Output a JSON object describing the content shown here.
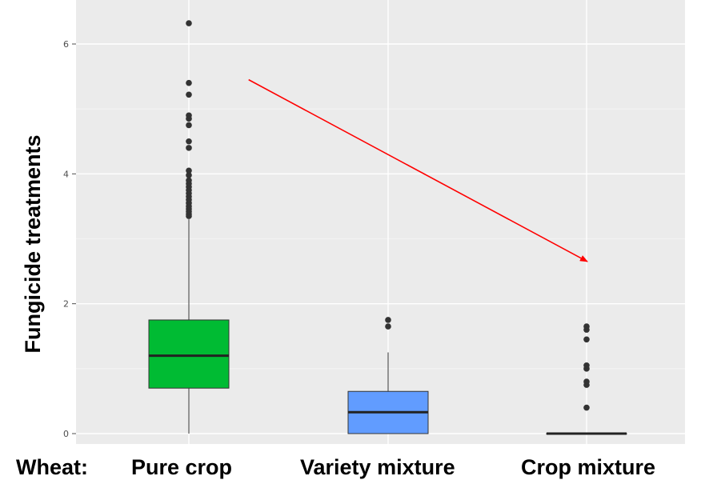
{
  "chart_data": {
    "type": "box",
    "ylabel": "Fungicide treatments",
    "xlabel_prefix": "Wheat:",
    "categories": [
      "Pure crop",
      "Variety mixture",
      "Crop mixture"
    ],
    "ylim": [
      -0.25,
      6.6
    ],
    "yticks": [
      0,
      2,
      4,
      6
    ],
    "grid": true,
    "boxes": [
      {
        "category": "Pure crop",
        "color": "#00bb33",
        "whisker_low": 0,
        "q1": 0.7,
        "median": 1.2,
        "q3": 1.75,
        "whisker_high": 3.3,
        "outliers": [
          3.35,
          3.38,
          3.42,
          3.46,
          3.5,
          3.55,
          3.6,
          3.65,
          3.7,
          3.75,
          3.8,
          3.85,
          3.9,
          3.98,
          4.05,
          4.4,
          4.5,
          4.75,
          4.85,
          4.9,
          5.22,
          5.4,
          6.32
        ]
      },
      {
        "category": "Variety mixture",
        "color": "#619cff",
        "whisker_low": 0,
        "q1": 0,
        "median": 0.33,
        "q3": 0.65,
        "whisker_high": 1.25,
        "outliers": [
          1.65,
          1.75
        ]
      },
      {
        "category": "Crop mixture",
        "color": "#f8766d",
        "whisker_low": 0,
        "q1": 0,
        "median": 0,
        "q3": 0,
        "whisker_high": 0,
        "outliers": [
          0.4,
          0.75,
          0.8,
          1.0,
          1.05,
          1.45,
          1.6,
          1.65
        ]
      }
    ],
    "annotation": {
      "type": "arrow",
      "color": "#ff0000",
      "from": {
        "category_pos": 1.3,
        "y": 5.45
      },
      "to": {
        "category_pos": 3.0,
        "y": 2.65
      }
    }
  }
}
